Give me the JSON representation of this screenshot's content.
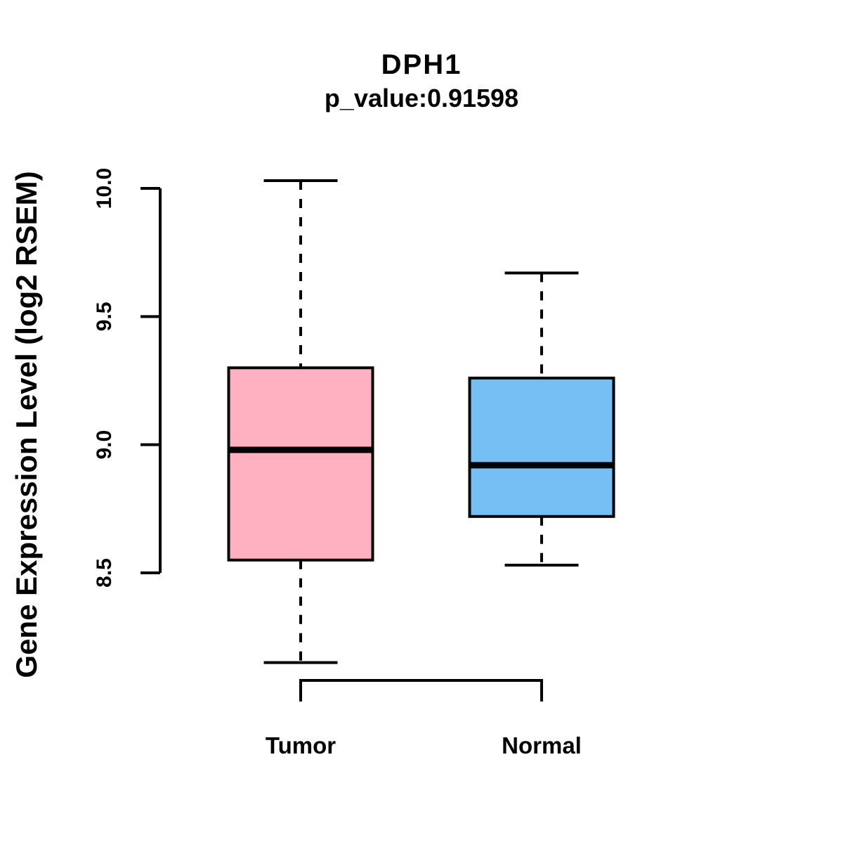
{
  "chart_data": {
    "type": "boxplot",
    "title": "DPH1",
    "subtitle": "p_value:0.91598",
    "gene": "DPH1",
    "p_value": 0.91598,
    "ylabel": "Gene Expression Level (log2 RSEM)",
    "xlabel": "",
    "categories": [
      "Tumor",
      "Normal"
    ],
    "series": [
      {
        "name": "Tumor",
        "color": "#FFB1C1",
        "lower_whisker": 8.15,
        "q1": 8.55,
        "median": 8.98,
        "q3": 9.3,
        "upper_whisker": 10.03
      },
      {
        "name": "Normal",
        "color": "#76BFF5",
        "lower_whisker": 8.53,
        "q1": 8.72,
        "median": 8.92,
        "q3": 9.26,
        "upper_whisker": 9.67
      }
    ],
    "yticks": [
      8.5,
      9.0,
      9.5,
      10.0
    ],
    "ytick_labels": [
      "8.5",
      "9.0",
      "9.5",
      "10.0"
    ],
    "ylim": [
      8.5,
      10.0
    ],
    "grid": false,
    "legend": "none",
    "comparison_bracket": {
      "from": "Tumor",
      "to": "Normal"
    }
  },
  "colors": {
    "tumor_fill": "#FFB1C1",
    "normal_fill": "#76BFF5",
    "line": "#000000",
    "background": "#FFFFFF"
  }
}
